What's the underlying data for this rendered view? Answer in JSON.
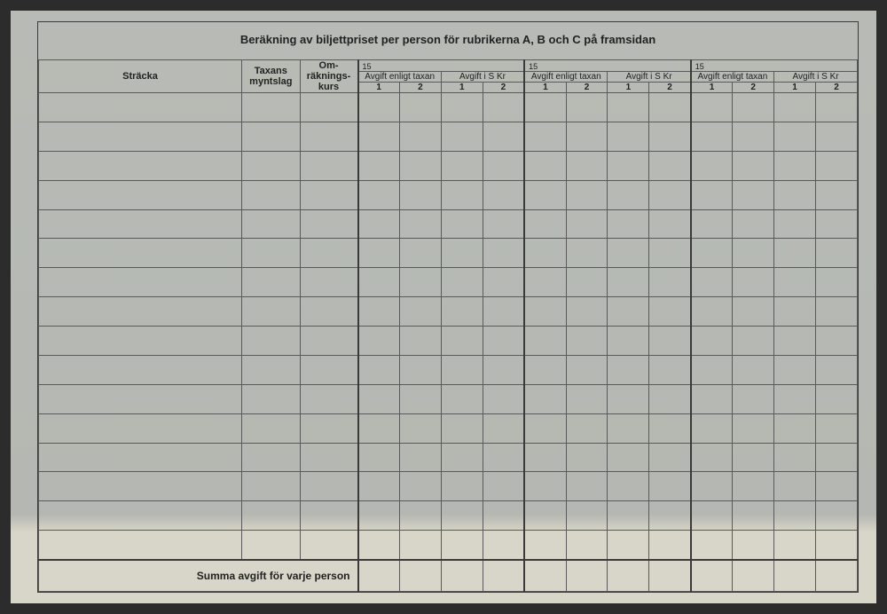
{
  "title": "Beräkning av biljettpriset per person för rubrikerna A, B och C på framsidan",
  "headers": {
    "stracka": "Sträcka",
    "taxans": "Taxans\nmyntslag",
    "omrak": "Om-\nräknings-\nkurs",
    "group_num": "15",
    "avgift_tax": "Avgift enligt taxan",
    "avgift_skr": "Avgift i S Kr",
    "col1": "1",
    "col2": "2"
  },
  "footer": "Summa avgift för varje person",
  "row_count": 16,
  "colors": {
    "paper_top": "#b8bbb5",
    "paper_bottom": "#d8d6c8",
    "frame": "#2c2c2c",
    "line": "#5a5a5a",
    "text": "#222222"
  }
}
